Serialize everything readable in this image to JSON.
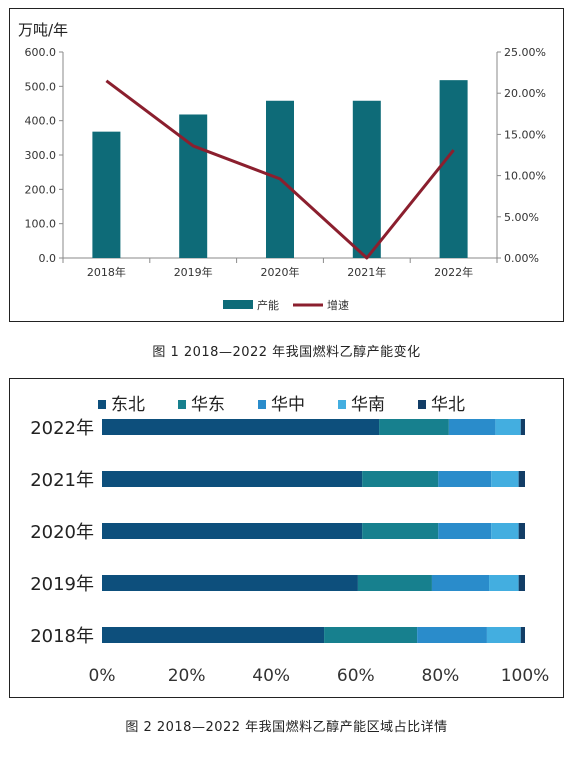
{
  "chart_data": [
    {
      "type": "bar+line",
      "unit_label": "万吨/年",
      "categories": [
        "2018年",
        "2019年",
        "2020年",
        "2021年",
        "2022年"
      ],
      "series": [
        {
          "name": "产能",
          "kind": "bar",
          "axis": "left",
          "color": "#0e6b78",
          "values": [
            368,
            418,
            458,
            458,
            518
          ]
        },
        {
          "name": "增速",
          "kind": "line",
          "axis": "right",
          "color": "#8b1f2e",
          "values": [
            21.5,
            13.6,
            9.6,
            0.0,
            13.1
          ]
        }
      ],
      "y_left": {
        "min": 0,
        "max": 600,
        "ticks": [
          "0.0",
          "100.0",
          "200.0",
          "300.0",
          "400.0",
          "500.0",
          "600.0"
        ]
      },
      "y_right": {
        "min": 0,
        "max": 25,
        "ticks": [
          "0.00%",
          "5.00%",
          "10.00%",
          "15.00%",
          "20.00%",
          "25.00%"
        ]
      },
      "legend_position": "bottom",
      "grid": false,
      "caption": "图 1  2018—2022 年我国燃料乙醇产能变化"
    },
    {
      "type": "stacked-bar-horizontal-100",
      "categories": [
        "2022年",
        "2021年",
        "2020年",
        "2019年",
        "2018年"
      ],
      "series": [
        {
          "name": "东北",
          "color": "#0d4f7c",
          "values": [
            65.5,
            61.5,
            61.5,
            60.5,
            52.5
          ]
        },
        {
          "name": "华东",
          "color": "#17808e",
          "values": [
            16.5,
            18.0,
            18.0,
            17.5,
            22.0
          ]
        },
        {
          "name": "华中",
          "color": "#2a8ccb",
          "values": [
            11.0,
            12.5,
            12.5,
            13.5,
            16.5
          ]
        },
        {
          "name": "华南",
          "color": "#43aee0",
          "values": [
            6.0,
            6.5,
            6.5,
            7.0,
            8.0
          ]
        },
        {
          "name": "华北",
          "color": "#123d66",
          "values": [
            1.0,
            1.5,
            1.5,
            1.5,
            1.0
          ]
        }
      ],
      "x_ticks": [
        "0%",
        "20%",
        "40%",
        "60%",
        "80%",
        "100%"
      ],
      "legend_position": "top",
      "grid": false,
      "caption": "图 2  2018—2022 年我国燃料乙醇产能区域占比详情"
    }
  ]
}
